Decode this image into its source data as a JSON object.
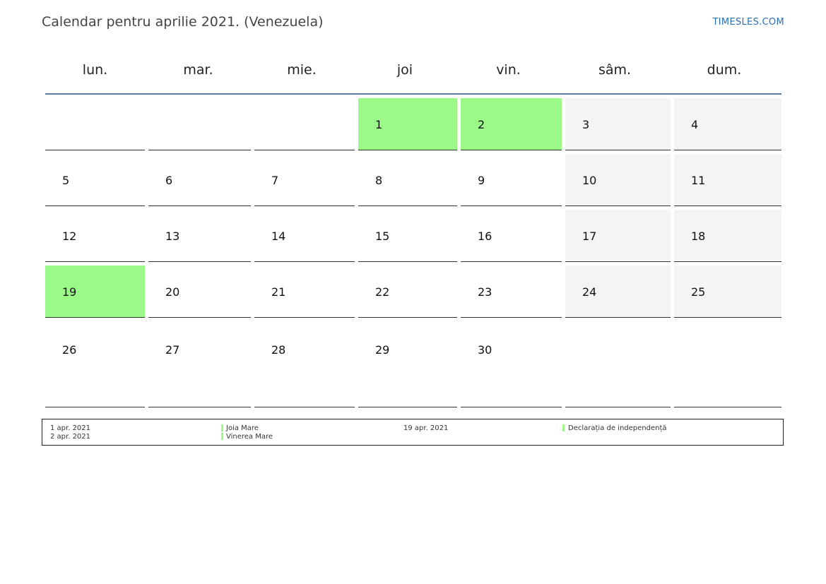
{
  "header": {
    "title": "Calendar pentru aprilie 2021. (Venezuela)",
    "site": "TIMESLES.COM"
  },
  "days": [
    "lun.",
    "mar.",
    "mie.",
    "joi",
    "vin.",
    "sâm.",
    "dum."
  ],
  "colors": {
    "holiday": "#9bfa87",
    "weekend": "#f4f4f4",
    "rule": "#5a7aa0"
  },
  "weeks": [
    [
      "",
      "",
      "",
      "1",
      "2",
      "3",
      "4"
    ],
    [
      "5",
      "6",
      "7",
      "8",
      "9",
      "10",
      "11"
    ],
    [
      "12",
      "13",
      "14",
      "15",
      "16",
      "17",
      "18"
    ],
    [
      "19",
      "20",
      "21",
      "22",
      "23",
      "24",
      "25"
    ],
    [
      "26",
      "27",
      "28",
      "29",
      "30",
      "",
      ""
    ]
  ],
  "holidays": [
    "1",
    "2",
    "19"
  ],
  "legend": {
    "d1": "1 apr. 2021",
    "n1": "Joia Mare",
    "d2": "2 apr. 2021",
    "n2": "Vinerea Mare",
    "d3": "19 apr. 2021",
    "n3": "Declarația de independență"
  }
}
